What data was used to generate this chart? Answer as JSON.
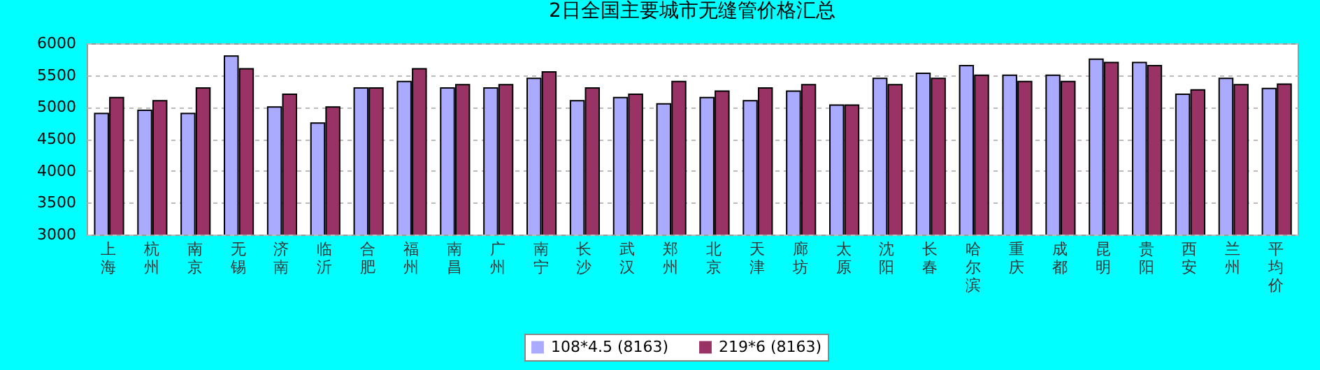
{
  "chart_data": {
    "type": "bar",
    "title": "2日全国主要城市无缝管价格汇总",
    "categories": [
      "上海",
      "杭州",
      "南京",
      "无锡",
      "济南",
      "临沂",
      "合肥",
      "福州",
      "南昌",
      "广州",
      "南宁",
      "长沙",
      "武汉",
      "郑州",
      "北京",
      "天津",
      "廊坊",
      "太原",
      "沈阳",
      "长春",
      "哈尔滨",
      "重庆",
      "成都",
      "昆明",
      "贵阳",
      "西安",
      "兰州",
      "平均价"
    ],
    "series": [
      {
        "name": "108*4.5 (8163)",
        "color": "#aaaaff",
        "values": [
          4900,
          4950,
          4900,
          5800,
          5000,
          4750,
          5300,
          5400,
          5300,
          5300,
          5450,
          5100,
          5150,
          5050,
          5150,
          5100,
          5250,
          5030,
          5450,
          5530,
          5650,
          5500,
          5500,
          5750,
          5700,
          5200,
          5450,
          5290
        ]
      },
      {
        "name": "219*6 (8163)",
        "color": "#993366",
        "values": [
          5150,
          5100,
          5300,
          5600,
          5200,
          5000,
          5300,
          5600,
          5350,
          5350,
          5550,
          5300,
          5200,
          5400,
          5250,
          5300,
          5350,
          5030,
          5350,
          5450,
          5500,
          5400,
          5400,
          5700,
          5650,
          5270,
          5350,
          5360
        ]
      }
    ],
    "ylim": [
      3000,
      6000
    ],
    "yticks": [
      3000,
      3500,
      4000,
      4500,
      5000,
      5500,
      6000
    ],
    "grid": "y",
    "legend": "bottom"
  }
}
